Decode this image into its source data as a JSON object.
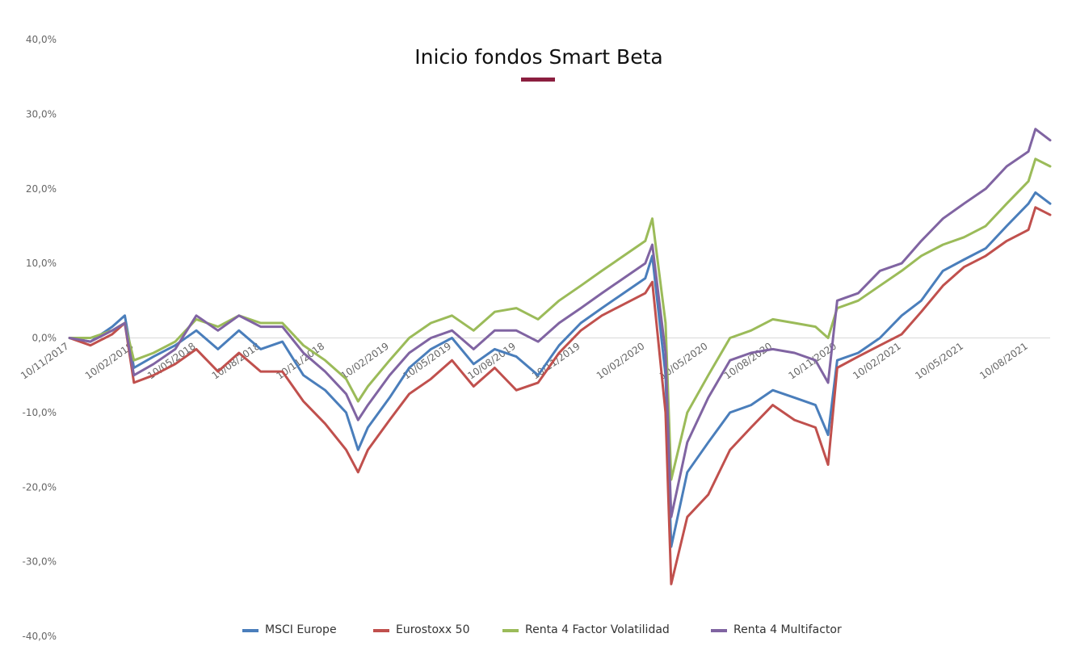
{
  "chart_data": {
    "type": "line",
    "title": "Inicio fondos Smart Beta",
    "title_accent_color": "#8b1e3f",
    "xlabel": "",
    "ylabel": "",
    "ylim": [
      -40,
      40
    ],
    "y_ticks": [
      40,
      30,
      20,
      10,
      0,
      -10,
      -20,
      -30,
      -40
    ],
    "y_tick_labels": [
      "40,0%",
      "30,0%",
      "20,0%",
      "10,0%",
      "0,0%",
      "-10,0%",
      "-20,0%",
      "-30,0%",
      "-40,0%"
    ],
    "x_range": [
      "2017-11-10",
      "2021-09-10"
    ],
    "x_tick_labels": [
      "10/11/2017",
      "10/02/2018",
      "10/05/2018",
      "10/08/2018",
      "10/11/2018",
      "10/02/2019",
      "10/05/2019",
      "10/08/2019",
      "10/11/2019",
      "10/02/2020",
      "10/05/2020",
      "10/08/2020",
      "10/11/2020",
      "10/02/2021",
      "10/05/2021",
      "10/08/2021"
    ],
    "x_tick_dates": [
      "2017-11-10",
      "2018-02-10",
      "2018-05-10",
      "2018-08-10",
      "2018-11-10",
      "2019-02-10",
      "2019-05-10",
      "2019-08-10",
      "2019-11-10",
      "2020-02-10",
      "2020-05-10",
      "2020-08-10",
      "2020-11-10",
      "2021-02-10",
      "2021-05-10",
      "2021-08-10"
    ],
    "grid": false,
    "zero_line": true,
    "legend_position": "bottom",
    "x": [
      "2017-11-10",
      "2017-12-10",
      "2018-01-10",
      "2018-01-28",
      "2018-02-10",
      "2018-03-10",
      "2018-04-10",
      "2018-05-10",
      "2018-06-10",
      "2018-07-10",
      "2018-08-10",
      "2018-09-10",
      "2018-10-10",
      "2018-11-10",
      "2018-12-10",
      "2018-12-27",
      "2019-01-10",
      "2019-02-10",
      "2019-03-10",
      "2019-04-10",
      "2019-05-10",
      "2019-06-10",
      "2019-07-10",
      "2019-08-10",
      "2019-09-10",
      "2019-10-10",
      "2019-11-10",
      "2019-12-10",
      "2020-01-10",
      "2020-02-10",
      "2020-02-20",
      "2020-03-10",
      "2020-03-18",
      "2020-04-10",
      "2020-05-10",
      "2020-06-10",
      "2020-07-10",
      "2020-08-10",
      "2020-09-10",
      "2020-10-10",
      "2020-10-28",
      "2020-11-10",
      "2020-12-10",
      "2021-01-10",
      "2021-02-10",
      "2021-03-10",
      "2021-04-10",
      "2021-05-10",
      "2021-06-10",
      "2021-07-10",
      "2021-08-10",
      "2021-08-20",
      "2021-09-10"
    ],
    "series": [
      {
        "name": "MSCI Europe",
        "color": "#4a7ebb",
        "values": [
          0.0,
          -0.5,
          1.5,
          3.0,
          -4.0,
          -2.5,
          -1.0,
          1.0,
          -1.5,
          1.0,
          -1.5,
          -0.5,
          -5.0,
          -7.0,
          -10.0,
          -15.0,
          -12.0,
          -8.0,
          -4.0,
          -1.5,
          0.0,
          -3.5,
          -1.5,
          -2.5,
          -5.0,
          -1.0,
          2.0,
          4.0,
          6.0,
          8.0,
          11.0,
          -5.0,
          -28.0,
          -18.0,
          -14.0,
          -10.0,
          -9.0,
          -7.0,
          -8.0,
          -9.0,
          -13.0,
          -3.0,
          -2.0,
          0.0,
          3.0,
          5.0,
          9.0,
          10.5,
          12.0,
          15.0,
          18.0,
          19.5,
          18.0
        ]
      },
      {
        "name": "Eurostoxx 50",
        "color": "#c0504d",
        "values": [
          0.0,
          -1.0,
          0.5,
          2.0,
          -6.0,
          -5.0,
          -3.5,
          -1.5,
          -4.5,
          -2.0,
          -4.5,
          -4.5,
          -8.5,
          -11.5,
          -15.0,
          -18.0,
          -15.0,
          -11.0,
          -7.5,
          -5.5,
          -3.0,
          -6.5,
          -4.0,
          -7.0,
          -6.0,
          -2.0,
          1.0,
          3.0,
          4.5,
          6.0,
          7.5,
          -10.0,
          -33.0,
          -24.0,
          -21.0,
          -15.0,
          -12.0,
          -9.0,
          -11.0,
          -12.0,
          -17.0,
          -4.0,
          -2.5,
          -1.0,
          0.5,
          3.5,
          7.0,
          9.5,
          11.0,
          13.0,
          14.5,
          17.5,
          16.5
        ]
      },
      {
        "name": "Renta 4 Factor Volatilidad",
        "color": "#9bbb59",
        "values": [
          0.0,
          0.0,
          1.0,
          2.0,
          -3.0,
          -2.0,
          -0.5,
          2.5,
          1.5,
          3.0,
          2.0,
          2.0,
          -1.0,
          -3.0,
          -5.5,
          -8.5,
          -6.5,
          -3.0,
          0.0,
          2.0,
          3.0,
          1.0,
          3.5,
          4.0,
          2.5,
          5.0,
          7.0,
          9.0,
          11.0,
          13.0,
          16.0,
          2.0,
          -19.0,
          -10.0,
          -5.0,
          0.0,
          1.0,
          2.5,
          2.0,
          1.5,
          0.0,
          4.0,
          5.0,
          7.0,
          9.0,
          11.0,
          12.5,
          13.5,
          15.0,
          18.0,
          21.0,
          24.0,
          23.0
        ]
      },
      {
        "name": "Renta 4 Multifactor",
        "color": "#8064a2",
        "values": [
          0.0,
          -0.5,
          1.0,
          2.0,
          -5.0,
          -3.5,
          -1.5,
          3.0,
          1.0,
          3.0,
          1.5,
          1.5,
          -2.0,
          -4.5,
          -7.5,
          -11.0,
          -9.0,
          -5.0,
          -2.0,
          0.0,
          1.0,
          -1.5,
          1.0,
          1.0,
          -0.5,
          2.0,
          4.0,
          6.0,
          8.0,
          10.0,
          12.5,
          -2.0,
          -24.0,
          -14.0,
          -8.0,
          -3.0,
          -2.0,
          -1.5,
          -2.0,
          -3.0,
          -6.0,
          5.0,
          6.0,
          9.0,
          10.0,
          13.0,
          16.0,
          18.0,
          20.0,
          23.0,
          25.0,
          28.0,
          26.5
        ]
      }
    ]
  }
}
